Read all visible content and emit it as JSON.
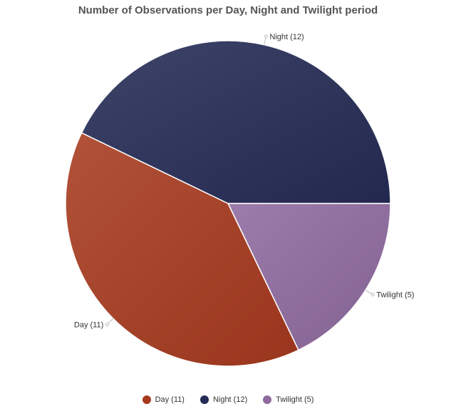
{
  "chart_data": {
    "type": "pie",
    "title": "Number of Observations per Day, Night and Twilight period",
    "slices": [
      {
        "label": "Day (11)",
        "value": 11,
        "color": "#a63a1e"
      },
      {
        "label": "Night (12)",
        "value": 12,
        "color": "#252b55"
      },
      {
        "label": "Twilight (5)",
        "value": 5,
        "color": "#8e6a9f"
      }
    ],
    "legend_placement": "bottom"
  }
}
